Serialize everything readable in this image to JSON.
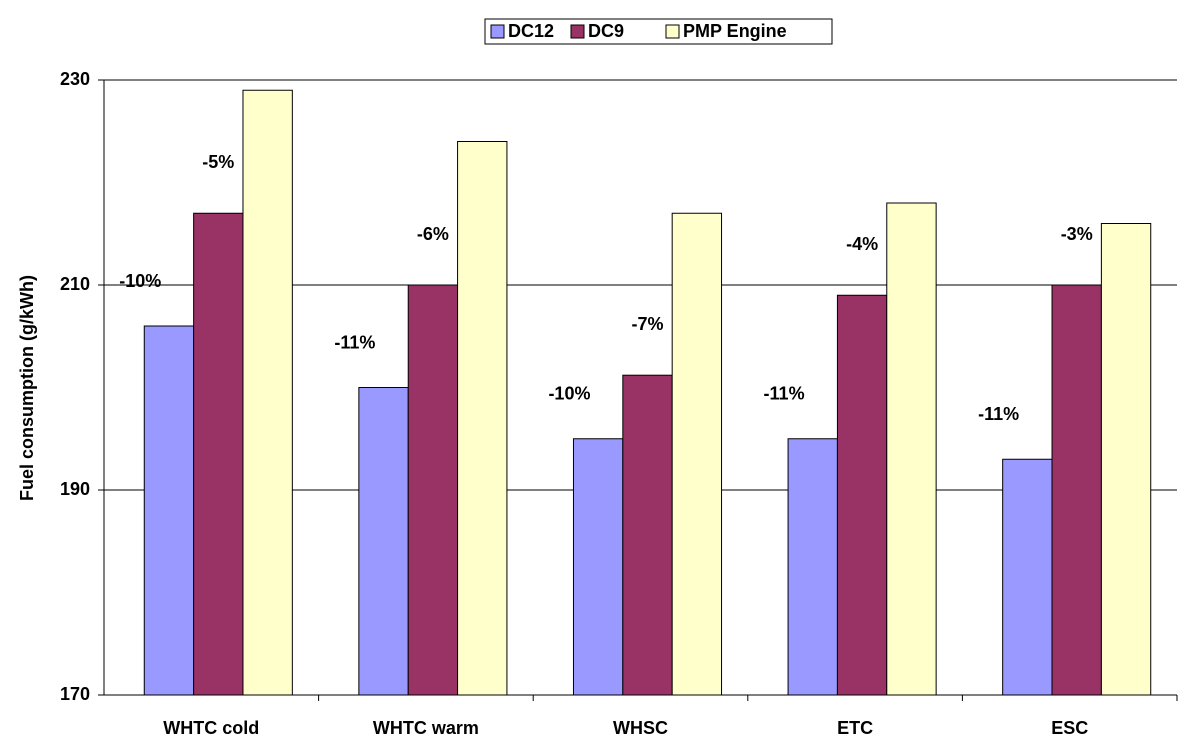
{
  "chart_data": {
    "type": "bar",
    "y_label": "Fuel consumption (g/kWh)",
    "categories": [
      "WHTC cold",
      "WHTC warm",
      "WHSC",
      "ETC",
      "ESC"
    ],
    "series": [
      {
        "name": "DC12",
        "color": "#9999ff",
        "values": [
          206,
          200,
          195,
          195,
          193
        ],
        "annotations": [
          "-10%",
          "-11%",
          "-10%",
          "-11%",
          "-11%"
        ]
      },
      {
        "name": "DC9",
        "color": "#993366",
        "values": [
          217,
          210,
          201.2,
          209,
          210
        ],
        "annotations": [
          "-5%",
          "-6%",
          "-7%",
          "-4%",
          "-3%"
        ]
      },
      {
        "name": "PMP Engine",
        "color": "#ffffcc",
        "values": [
          229,
          224,
          217,
          218,
          216
        ]
      }
    ],
    "ylim": [
      170,
      230
    ],
    "yticks": [
      170,
      190,
      210,
      230
    ],
    "grid": true,
    "legend": "top"
  }
}
